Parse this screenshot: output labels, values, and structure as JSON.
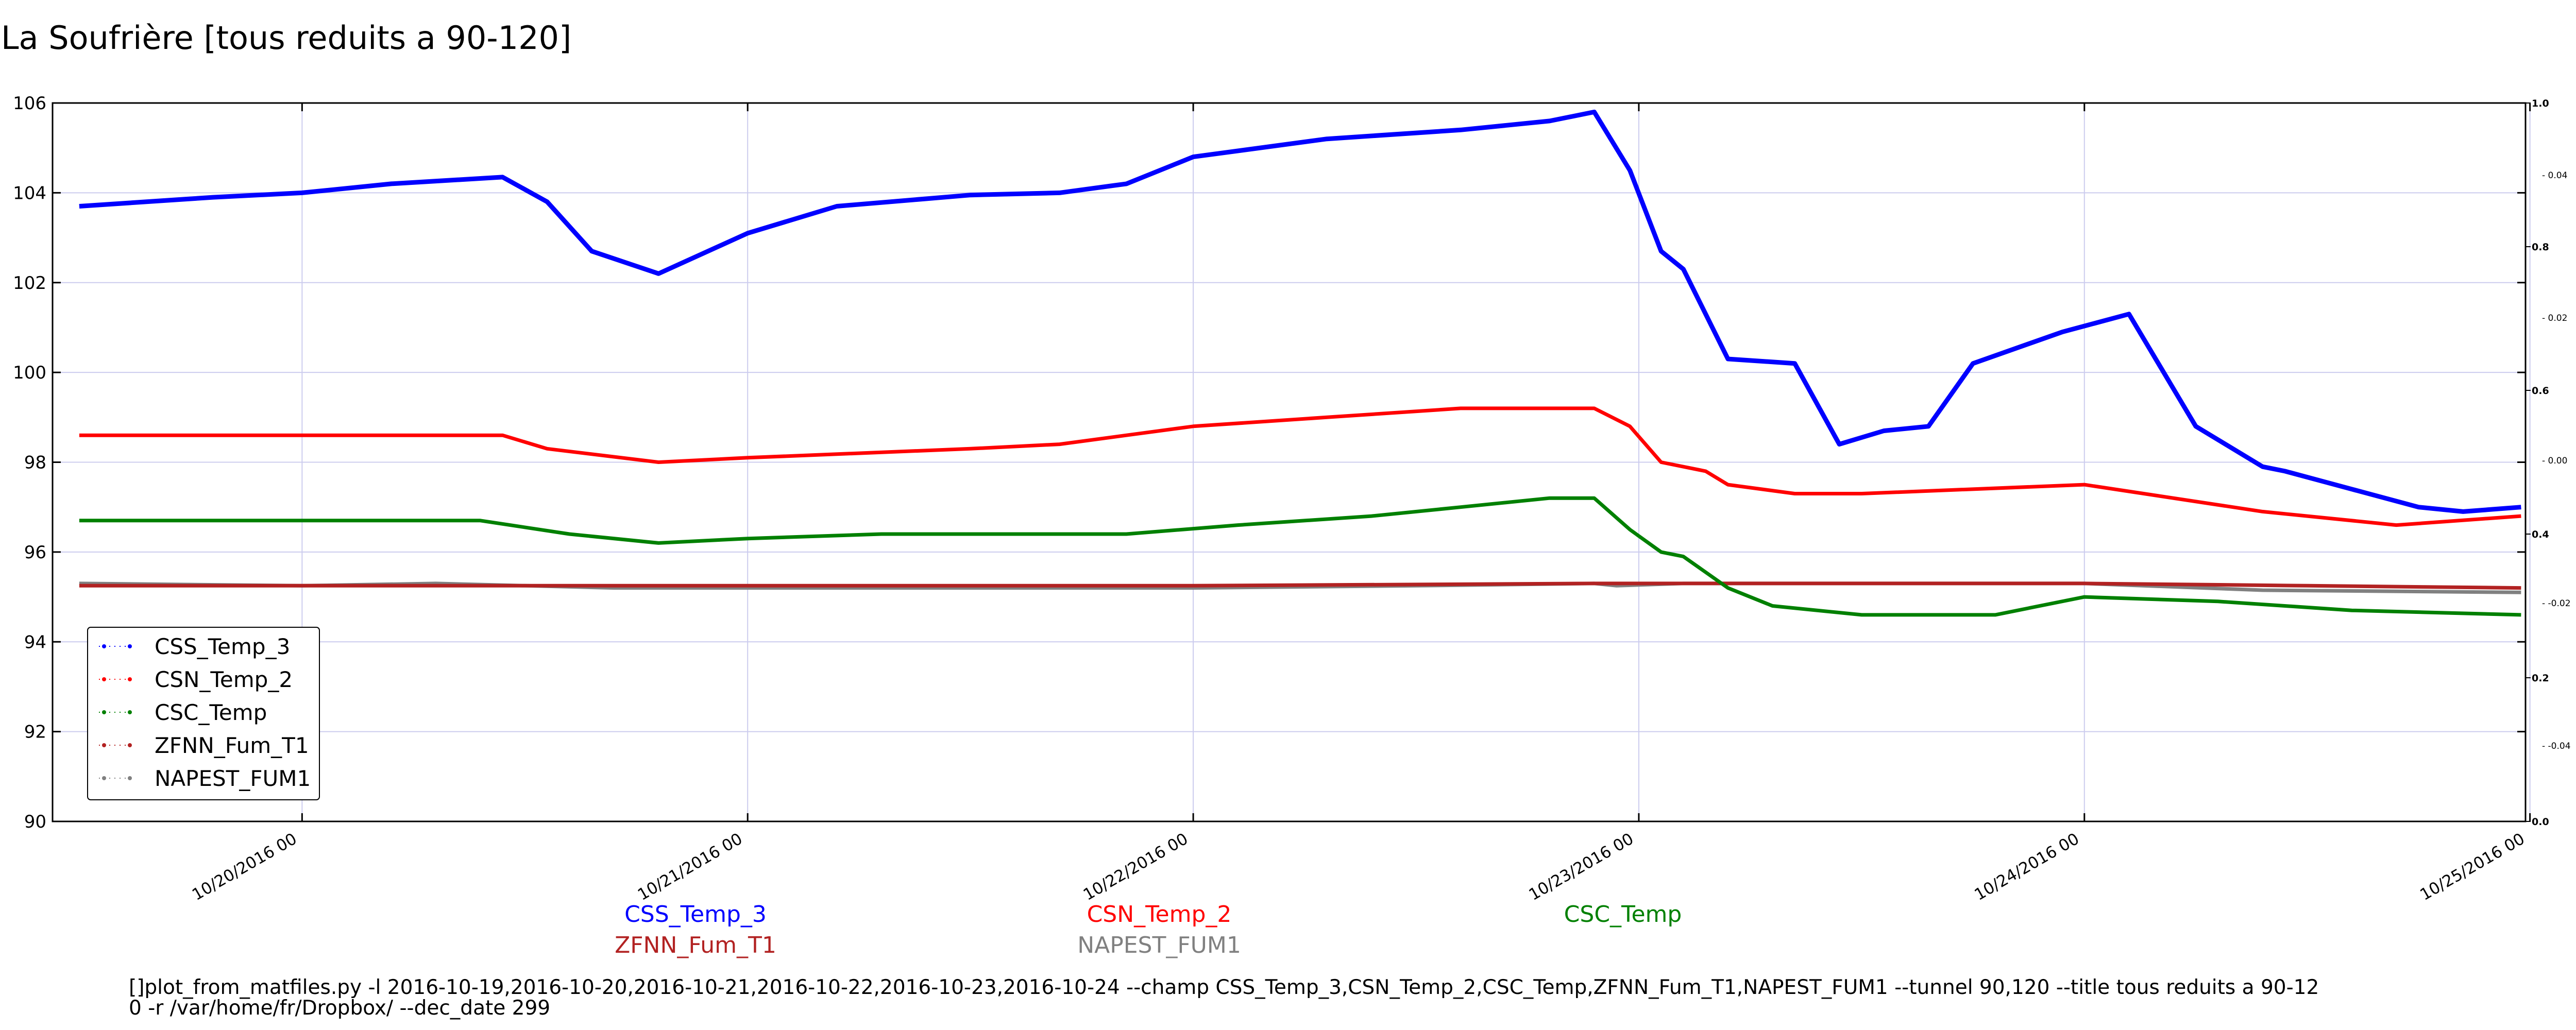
{
  "chart_data": {
    "type": "line",
    "title": "La Soufrière [tous reduits a 90-120]",
    "ylim": [
      90,
      106
    ],
    "yticks": [
      "90",
      "92",
      "94",
      "96",
      "98",
      "100",
      "102",
      "104",
      "106"
    ],
    "right_axis_ticks_outer": [
      "0.0",
      "0.2",
      "0.4",
      "0.6",
      "0.8",
      "1.0"
    ],
    "right_axis_ticks_inner": [
      "-0.04",
      "-0.02",
      "0.00",
      "0.02",
      "0.04"
    ],
    "x_range_days": [
      19.44,
      24.99
    ],
    "xtick_labels": [
      {
        "day": 20,
        "label": "10/20/2016 00"
      },
      {
        "day": 21,
        "label": "10/21/2016 00"
      },
      {
        "day": 22,
        "label": "10/22/2016 00"
      },
      {
        "day": 23,
        "label": "10/23/2016 00"
      },
      {
        "day": 24,
        "label": "10/24/2016 00"
      },
      {
        "day": 25,
        "label": "10/25/2016 00"
      }
    ],
    "grid": true,
    "legend_placement": "lower-left",
    "series": [
      {
        "name": "CSS_Temp_3",
        "color": "#0000ff",
        "x": [
          19.5,
          19.8,
          20.0,
          20.2,
          20.45,
          20.55,
          20.65,
          20.8,
          21.0,
          21.2,
          21.5,
          21.7,
          21.85,
          22.0,
          22.3,
          22.6,
          22.8,
          22.9,
          22.98,
          23.05,
          23.1,
          23.2,
          23.35,
          23.45,
          23.55,
          23.65,
          23.75,
          23.95,
          24.1,
          24.25,
          24.4,
          24.45,
          24.6,
          24.75,
          24.85,
          24.98
        ],
        "values": [
          103.7,
          103.9,
          104.0,
          104.2,
          104.35,
          103.8,
          102.7,
          102.2,
          103.1,
          103.7,
          103.95,
          104.0,
          104.2,
          104.8,
          105.2,
          105.4,
          105.6,
          105.8,
          104.5,
          102.7,
          102.3,
          100.3,
          100.2,
          98.4,
          98.7,
          98.8,
          100.2,
          100.9,
          101.3,
          98.8,
          97.9,
          97.8,
          97.4,
          97.0,
          96.9,
          97.0
        ]
      },
      {
        "name": "CSN_Temp_2",
        "color": "#ff0000",
        "x": [
          19.5,
          20.0,
          20.3,
          20.45,
          20.55,
          20.8,
          21.0,
          21.5,
          21.7,
          21.85,
          22.0,
          22.3,
          22.6,
          22.9,
          22.98,
          23.05,
          23.15,
          23.2,
          23.35,
          23.5,
          24.0,
          24.4,
          24.7,
          24.98
        ],
        "values": [
          98.6,
          98.6,
          98.6,
          98.6,
          98.3,
          98.0,
          98.1,
          98.3,
          98.4,
          98.6,
          98.8,
          99.0,
          99.2,
          99.2,
          98.8,
          98.0,
          97.8,
          97.5,
          97.3,
          97.3,
          97.5,
          96.9,
          96.6,
          96.8
        ]
      },
      {
        "name": "CSC_Temp",
        "color": "#008000",
        "x": [
          19.5,
          20.0,
          20.4,
          20.6,
          20.8,
          21.0,
          21.3,
          21.6,
          21.85,
          22.1,
          22.4,
          22.6,
          22.8,
          22.9,
          22.98,
          23.05,
          23.1,
          23.2,
          23.3,
          23.5,
          23.8,
          24.0,
          24.3,
          24.6,
          24.98
        ],
        "values": [
          96.7,
          96.7,
          96.7,
          96.4,
          96.2,
          96.3,
          96.4,
          96.4,
          96.4,
          96.6,
          96.8,
          97.0,
          97.2,
          97.2,
          96.5,
          96.0,
          95.9,
          95.2,
          94.8,
          94.6,
          94.6,
          95.0,
          94.9,
          94.7,
          94.6
        ]
      },
      {
        "name": "ZFNN_Fum_T1",
        "color": "#b22222",
        "x": [
          19.5,
          20.0,
          21.0,
          22.0,
          22.9,
          23.5,
          24.0,
          24.5,
          24.98
        ],
        "values": [
          95.25,
          95.25,
          95.25,
          95.25,
          95.3,
          95.3,
          95.3,
          95.25,
          95.2
        ]
      },
      {
        "name": "NAPEST_FUM1",
        "color": "#808080",
        "x": [
          19.5,
          20.0,
          20.3,
          20.7,
          21.0,
          21.5,
          22.0,
          22.5,
          22.9,
          22.95,
          23.1,
          23.5,
          24.0,
          24.4,
          24.98
        ],
        "values": [
          95.3,
          95.25,
          95.3,
          95.2,
          95.2,
          95.2,
          95.2,
          95.25,
          95.3,
          95.25,
          95.3,
          95.3,
          95.3,
          95.15,
          95.1
        ]
      }
    ]
  },
  "footer": {
    "command_line_1": "[]plot_from_matfiles.py -l 2016-10-19,2016-10-20,2016-10-21,2016-10-22,2016-10-23,2016-10-24 --champ CSS_Temp_3,CSN_Temp_2,CSC_Temp,ZFNN_Fum_T1,NAPEST_FUM1 --tunnel 90,120 --title tous reduits a 90-12",
    "command_line_2": "0 -r /var/home/fr/Dropbox/ --dec_date 299"
  }
}
